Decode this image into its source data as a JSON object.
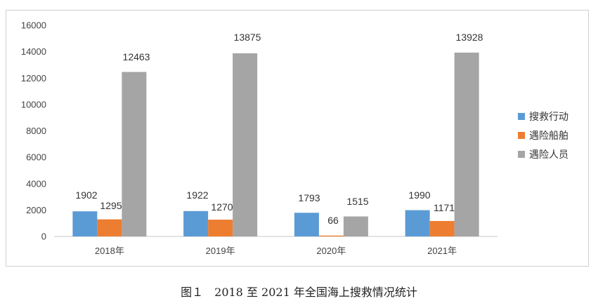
{
  "chart_data": {
    "type": "bar",
    "categories": [
      "2018年",
      "2019年",
      "2020年",
      "2021年"
    ],
    "series": [
      {
        "name": "搜救行动",
        "values": [
          1902,
          1922,
          1793,
          1990
        ],
        "color": "#5B9BD5"
      },
      {
        "name": "遇险船舶",
        "values": [
          1295,
          1270,
          66,
          1171
        ],
        "color": "#ED7D31"
      },
      {
        "name": "遇险人员",
        "values": [
          12463,
          13875,
          1515,
          13928
        ],
        "color": "#A5A5A5"
      }
    ],
    "yticks": [
      "0",
      "2000",
      "4000",
      "6000",
      "8000",
      "10000",
      "12000",
      "14000",
      "16000"
    ],
    "ylim": [
      0,
      16000
    ],
    "grid": false,
    "legend": "right",
    "data_labels": true
  },
  "caption": "图１　2018 至 2021 年全国海上搜救情况统计"
}
